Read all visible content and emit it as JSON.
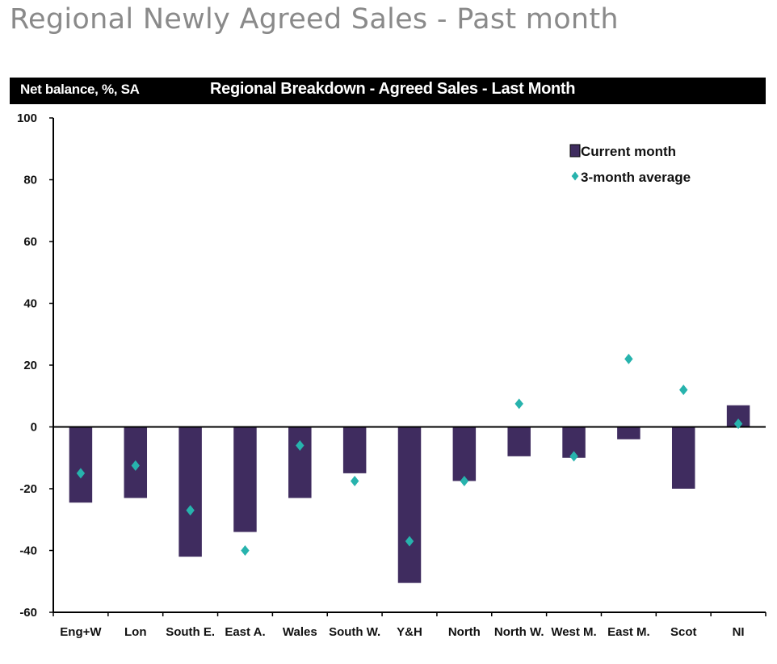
{
  "page": {
    "title": "Regional Newly Agreed Sales - Past month"
  },
  "header": {
    "left_label": "Net balance, %, SA",
    "chart_title": "Regional Breakdown - Agreed Sales - Last Month"
  },
  "legend": {
    "current": "Current month",
    "average": "3-month average"
  },
  "colors": {
    "bar": "#3f2c5f",
    "marker": "#27b3ad",
    "axis": "#000000"
  },
  "chart_data": {
    "type": "bar",
    "title": "Regional Breakdown - Agreed Sales - Last Month",
    "ylabel": "Net balance, %, SA",
    "xlabel": "",
    "ylim": [
      -60,
      100
    ],
    "yticks": [
      100,
      80,
      60,
      40,
      20,
      0,
      -20,
      -40,
      -60
    ],
    "grid": false,
    "legend_position": "top-right",
    "categories": [
      "Eng+W",
      "Lon",
      "South E.",
      "East A.",
      "Wales",
      "South W.",
      "Y&H",
      "North",
      "North W.",
      "West M.",
      "East M.",
      "Scot",
      "NI"
    ],
    "series": [
      {
        "name": "Current month",
        "type": "bar",
        "values": [
          -24.5,
          -23,
          -42,
          -34,
          -23,
          -15,
          -50.5,
          -17.5,
          -9.5,
          -10,
          -4,
          -20,
          7
        ]
      },
      {
        "name": "3-month average",
        "type": "scatter",
        "values": [
          -15,
          -12.5,
          -27,
          -40,
          -6,
          -17.5,
          -37,
          -17.5,
          7.5,
          -9.5,
          22,
          12,
          1
        ]
      }
    ]
  }
}
